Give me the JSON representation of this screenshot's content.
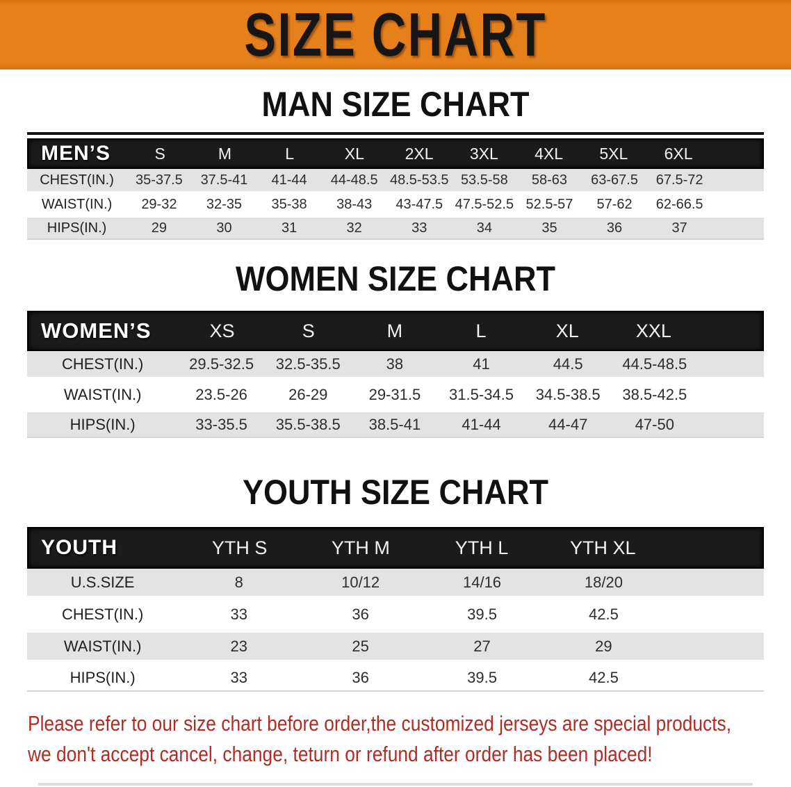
{
  "banner": {
    "title": "SIZE CHART"
  },
  "colors": {
    "banner_orange": "#e6801b",
    "header_band_black": "#1b1b1b",
    "row_gray": "#e3e3e3",
    "disclaimer_red": "#b22c24"
  },
  "sections": [
    {
      "id": "men",
      "title": "MAN SIZE CHART",
      "table": {
        "header": {
          "label": "MEN’S",
          "sizes": [
            "S",
            "M",
            "L",
            "XL",
            "2XL",
            "3XL",
            "4XL",
            "5XL",
            "6XL"
          ]
        },
        "rows": [
          {
            "label": "CHEST(IN.)",
            "values": [
              "35-37.5",
              "37.5-41",
              "41-44",
              "44-48.5",
              "48.5-53.5",
              "53.5-58",
              "58-63",
              "63-67.5",
              "67.5-72"
            ]
          },
          {
            "label": "WAIST(IN.)",
            "values": [
              "29-32",
              "32-35",
              "35-38",
              "38-43",
              "43-47.5",
              "47.5-52.5",
              "52.5-57",
              "57-62",
              "62-66.5"
            ]
          },
          {
            "label": "HIPS(IN.)",
            "values": [
              "29",
              "30",
              "31",
              "32",
              "33",
              "34",
              "35",
              "36",
              "37"
            ]
          }
        ]
      }
    },
    {
      "id": "women",
      "title": "WOMEN SIZE CHART",
      "table": {
        "header": {
          "label": "WOMEN’S",
          "sizes": [
            "XS",
            "S",
            "M",
            "L",
            "XL",
            "XXL"
          ]
        },
        "rows": [
          {
            "label": "CHEST(IN.)",
            "values": [
              "29.5-32.5",
              "32.5-35.5",
              "38",
              "41",
              "44.5",
              "44.5-48.5"
            ]
          },
          {
            "label": "WAIST(IN.)",
            "values": [
              "23.5-26",
              "26-29",
              "29-31.5",
              "31.5-34.5",
              "34.5-38.5",
              "38.5-42.5"
            ]
          },
          {
            "label": "HIPS(IN.)",
            "values": [
              "33-35.5",
              "35.5-38.5",
              "38.5-41",
              "41-44",
              "44-47",
              "47-50"
            ]
          }
        ]
      }
    },
    {
      "id": "youth",
      "title": "YOUTH SIZE CHART",
      "table": {
        "header": {
          "label": "YOUTH",
          "sizes": [
            "YTH S",
            "YTH M",
            "YTH L",
            "YTH XL"
          ]
        },
        "rows": [
          {
            "label": "U.S.SIZE",
            "values": [
              "8",
              "10/12",
              "14/16",
              "18/20"
            ]
          },
          {
            "label": "CHEST(IN.)",
            "values": [
              "33",
              "36",
              "39.5",
              "42.5"
            ]
          },
          {
            "label": "WAIST(IN.)",
            "values": [
              "23",
              "25",
              "27",
              "29"
            ]
          },
          {
            "label": "HIPS(IN.)",
            "values": [
              "33",
              "36",
              "39.5",
              "42.5"
            ]
          }
        ]
      }
    }
  ],
  "disclaimer": {
    "line1": "Please refer to our size chart before order,the customized jerseys are special products,",
    "line2": "we don't accept cancel, change, teturn or refund after order has been placed!"
  }
}
